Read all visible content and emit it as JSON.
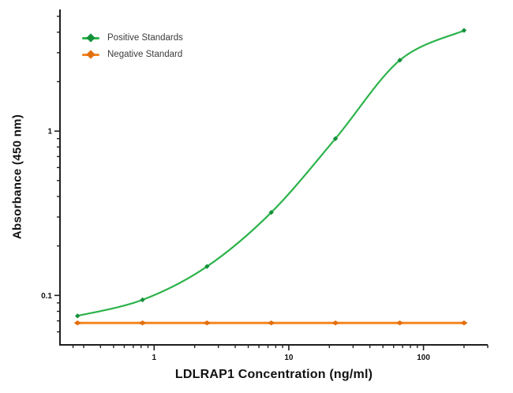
{
  "chart_data": {
    "type": "line",
    "title": "",
    "xlabel": "LDLRAP1 Concentration (ng/ml)",
    "ylabel": "Absorbance (450 nm)",
    "x_scale": "log",
    "y_scale": "log",
    "xlim": [
      0.2,
      300
    ],
    "ylim": [
      0.05,
      5.5
    ],
    "grid": false,
    "legend_position": "top-left",
    "x_major_ticks": [
      {
        "value": 1,
        "label": "1"
      },
      {
        "value": 10,
        "label": "10"
      },
      {
        "value": 100,
        "label": "100"
      }
    ],
    "x_minor_ticks": [
      0.25,
      0.3,
      0.4,
      0.5,
      0.6,
      0.7,
      0.8,
      0.9,
      2,
      3,
      4,
      5,
      6,
      7,
      8,
      9,
      20,
      30,
      40,
      50,
      60,
      70,
      80,
      90,
      200,
      300
    ],
    "y_major_ticks": [
      {
        "value": 0.1,
        "label": "0.1"
      },
      {
        "value": 1,
        "label": "1"
      }
    ],
    "y_minor_ticks": [
      0.06,
      0.07,
      0.08,
      0.09,
      0.2,
      0.3,
      0.4,
      0.5,
      0.6,
      0.7,
      0.8,
      0.9,
      2,
      3,
      4,
      5
    ],
    "series": [
      {
        "name": "Positive Standards",
        "color": "#2cb34a",
        "marker_color": "#15903a",
        "marker": "diamond",
        "curve": "sigmoid",
        "x": [
          0.27,
          0.82,
          2.47,
          7.41,
          22.2,
          66.7,
          200
        ],
        "y": [
          0.075,
          0.094,
          0.15,
          0.32,
          0.9,
          2.7,
          4.1
        ]
      },
      {
        "name": "Negative Standard",
        "color": "#f5861f",
        "marker_color": "#e2700f",
        "marker": "diamond",
        "curve": "straight",
        "x": [
          0.27,
          0.82,
          2.47,
          7.41,
          22.2,
          66.7,
          200
        ],
        "y": [
          0.068,
          0.068,
          0.068,
          0.068,
          0.068,
          0.068,
          0.068
        ]
      }
    ],
    "axis_color": "#1f1f1f"
  }
}
